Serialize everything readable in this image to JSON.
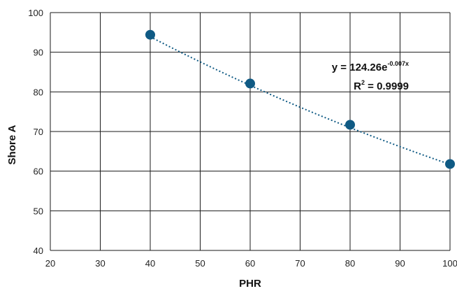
{
  "chart_data": {
    "type": "scatter",
    "title": "",
    "xlabel": "PHR",
    "ylabel": "Shore A",
    "xlim": [
      20,
      100
    ],
    "ylim": [
      40,
      100
    ],
    "x_ticks": [
      "20",
      "30",
      "40",
      "50",
      "60",
      "70",
      "80",
      "90",
      "100"
    ],
    "y_ticks": [
      "40",
      "50",
      "60",
      "70",
      "80",
      "90",
      "100"
    ],
    "grid": true,
    "legend": "none",
    "series": [
      {
        "x": [
          40,
          60,
          80,
          100
        ],
        "y": [
          94.4,
          82.1,
          71.7,
          61.8
        ],
        "color": "#0f5a84"
      }
    ],
    "trendline": {
      "kind": "exponential",
      "a": 124.26,
      "b": -0.007,
      "style": "dotted",
      "color": "#0f5a84",
      "equation_prefix": "y = 124.26e",
      "equation_exponent": "-0.007x",
      "r2_prefix": "R",
      "r2_sup": "2",
      "r2_suffix": " = 0.9999"
    }
  }
}
